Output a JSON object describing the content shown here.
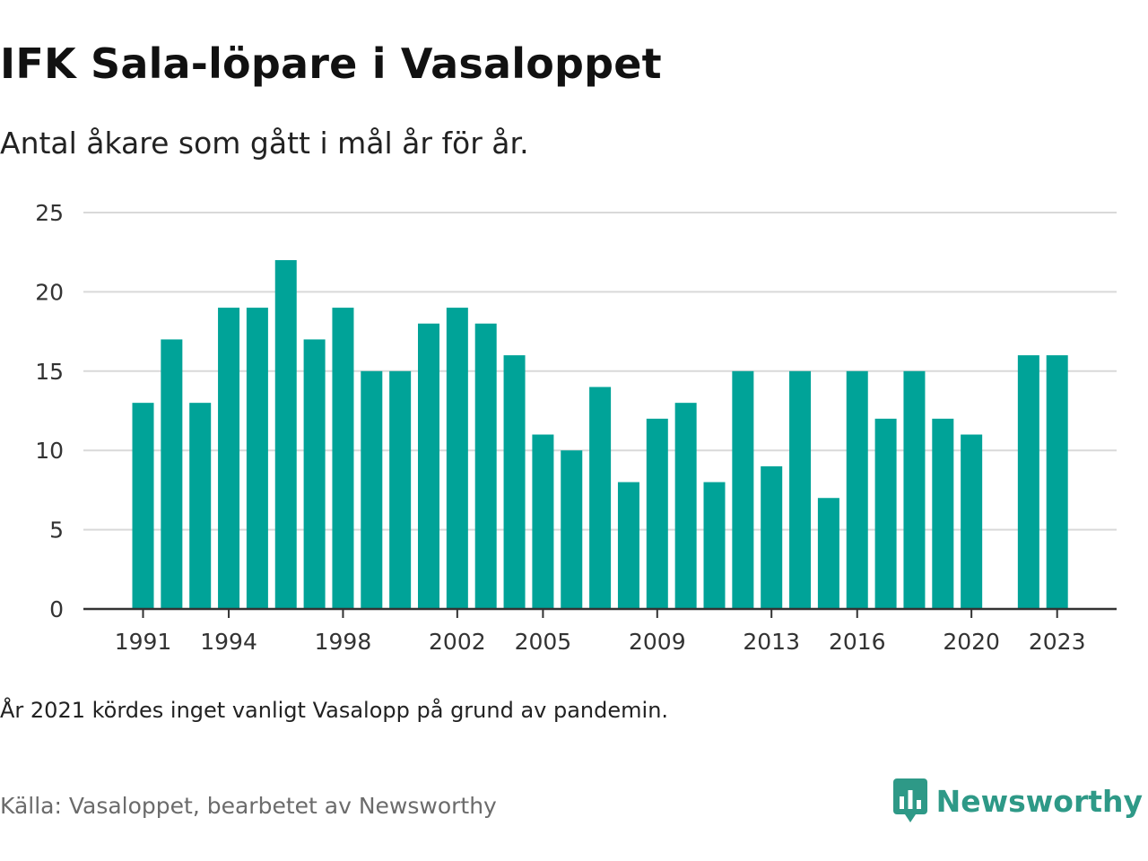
{
  "header": {
    "title": "IFK Sala-löpare i Vasaloppet",
    "subtitle": "Antal åkare som gått i mål år för år."
  },
  "footer": {
    "note": "År 2021 kördes inget vanligt Vasalopp på grund av pandemin.",
    "source": "Källa: Vasaloppet, bearbetet av Newsworthy",
    "brand": "Newsworthy",
    "brand_icon": "newsworthy-logo-icon"
  },
  "colors": {
    "bar": "#00a398",
    "brand": "#2e9987",
    "grid": "#d9d9d9",
    "axis": "#333333"
  },
  "chart_data": {
    "type": "bar",
    "title": "IFK Sala-löpare i Vasaloppet",
    "subtitle": "Antal åkare som gått i mål år för år.",
    "xlabel": "",
    "ylabel": "",
    "categories": [
      "1991",
      "1992",
      "1993",
      "1994",
      "1995",
      "1996",
      "1997",
      "1998",
      "1999",
      "2000",
      "2001",
      "2002",
      "2003",
      "2004",
      "2005",
      "2006",
      "2007",
      "2008",
      "2009",
      "2010",
      "2011",
      "2012",
      "2013",
      "2014",
      "2015",
      "2016",
      "2017",
      "2018",
      "2019",
      "2020",
      "2021",
      "2022",
      "2023"
    ],
    "values": [
      13,
      17,
      13,
      19,
      19,
      22,
      17,
      19,
      15,
      15,
      18,
      19,
      18,
      16,
      11,
      10,
      14,
      8,
      12,
      13,
      8,
      15,
      9,
      15,
      7,
      15,
      12,
      15,
      12,
      11,
      null,
      16,
      16
    ],
    "x_tick_labels": [
      "1991",
      "1994",
      "1998",
      "2002",
      "2005",
      "2009",
      "2013",
      "2016",
      "2020",
      "2023"
    ],
    "y_ticks": [
      0,
      5,
      10,
      15,
      20,
      25
    ],
    "ylim": [
      0,
      25
    ],
    "grid": true,
    "legend": "none"
  }
}
